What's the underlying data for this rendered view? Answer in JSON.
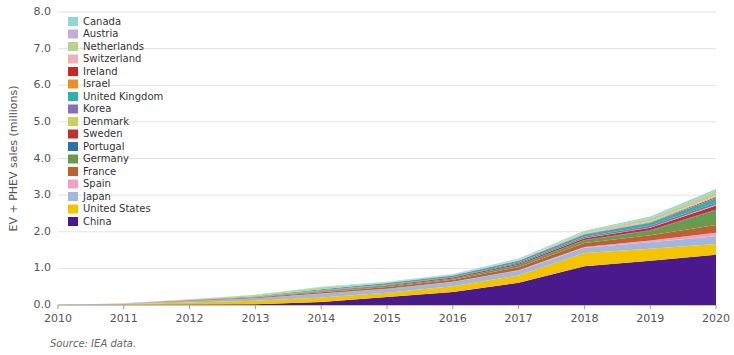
{
  "chart_data": {
    "type": "area",
    "stacked": true,
    "y_label": "EV + PHEV sales (millions)",
    "source": "Source: IEA data.",
    "x": [
      2010,
      2011,
      2012,
      2013,
      2014,
      2015,
      2016,
      2017,
      2018,
      2019,
      2020
    ],
    "xlim": [
      2010,
      2020
    ],
    "xticks": [
      2010,
      2011,
      2012,
      2013,
      2014,
      2015,
      2016,
      2017,
      2018,
      2019,
      2020
    ],
    "ylim": [
      0.0,
      8.0
    ],
    "yticks": [
      {
        "value": 0.0,
        "label": "0.0"
      },
      {
        "value": 1.0,
        "label": "1.0"
      },
      {
        "value": 2.0,
        "label": "2.0"
      },
      {
        "value": 3.0,
        "label": "3.0"
      },
      {
        "value": 4.0,
        "label": "4.0"
      },
      {
        "value": 5.0,
        "label": "5.0"
      },
      {
        "value": 6.0,
        "label": "6.0"
      },
      {
        "value": 7.0,
        "label": "7.0"
      },
      {
        "value": 8.0,
        "label": "8.0"
      }
    ],
    "grid": true,
    "legend": "upper left",
    "series": [
      {
        "name": "China",
        "color": "#4a1a8c",
        "values": [
          0.001,
          0.006,
          0.014,
          0.02,
          0.083,
          0.22,
          0.352,
          0.608,
          1.058,
          1.206,
          1.37
        ]
      },
      {
        "name": "United States",
        "color": "#f5c400",
        "values": [
          0.0,
          0.017,
          0.053,
          0.097,
          0.12,
          0.116,
          0.16,
          0.2,
          0.362,
          0.33,
          0.295
        ]
      },
      {
        "name": "Japan",
        "color": "#a0b8e0",
        "values": [
          0.001,
          0.014,
          0.044,
          0.064,
          0.107,
          0.105,
          0.118,
          0.13,
          0.14,
          0.18,
          0.215
        ]
      },
      {
        "name": "Spain",
        "color": "#f5a0c8",
        "values": [
          0.0,
          0.001,
          0.001,
          0.001,
          0.002,
          0.004,
          0.006,
          0.012,
          0.026,
          0.048,
          0.096
        ]
      },
      {
        "name": "France",
        "color": "#c06030",
        "values": [
          0.0,
          0.002,
          0.011,
          0.022,
          0.038,
          0.046,
          0.055,
          0.082,
          0.105,
          0.14,
          0.21
        ]
      },
      {
        "name": "Germany",
        "color": "#6a9a50",
        "values": [
          0.0,
          0.002,
          0.004,
          0.007,
          0.014,
          0.026,
          0.028,
          0.058,
          0.074,
          0.122,
          0.4
        ]
      },
      {
        "name": "Portugal",
        "color": "#3070a8",
        "values": [
          0.0,
          0.001,
          0.002,
          0.003,
          0.005,
          0.005,
          0.006,
          0.007,
          0.008,
          0.013,
          0.02
        ]
      },
      {
        "name": "Sweden",
        "color": "#c03030",
        "values": [
          0.0,
          0.001,
          0.003,
          0.006,
          0.015,
          0.018,
          0.023,
          0.028,
          0.05,
          0.068,
          0.11
        ]
      },
      {
        "name": "Denmark",
        "color": "#c8d060",
        "values": [
          0.0,
          0.001,
          0.001,
          0.003,
          0.007,
          0.005,
          0.002,
          0.003,
          0.004,
          0.01,
          0.02
        ]
      },
      {
        "name": "Korea",
        "color": "#8870b8",
        "values": [
          0.0,
          0.0,
          0.001,
          0.003,
          0.009,
          0.013,
          0.017,
          0.03,
          0.035,
          0.046,
          0.058
        ]
      },
      {
        "name": "United Kingdom",
        "color": "#30b0b0",
        "values": [
          0.0,
          0.001,
          0.004,
          0.011,
          0.027,
          0.044,
          0.04,
          0.052,
          0.065,
          0.082,
          0.118
        ]
      },
      {
        "name": "Israel",
        "color": "#e89020",
        "values": [
          0.0,
          0.002,
          0.002,
          0.001,
          0.001,
          0.001,
          0.002,
          0.002,
          0.005,
          0.007,
          0.012
        ]
      },
      {
        "name": "Ireland",
        "color": "#cc2820",
        "values": [
          0.0,
          0.0,
          0.001,
          0.001,
          0.001,
          0.001,
          0.001,
          0.002,
          0.004,
          0.008,
          0.023
        ]
      },
      {
        "name": "Switzerland",
        "color": "#f0b0b8",
        "values": [
          0.0,
          0.0,
          0.001,
          0.002,
          0.004,
          0.006,
          0.008,
          0.015,
          0.025,
          0.03,
          0.038
        ]
      },
      {
        "name": "Netherlands",
        "color": "#b8d488",
        "values": [
          0.0,
          0.001,
          0.009,
          0.032,
          0.048,
          0.01,
          0.011,
          0.011,
          0.026,
          0.072,
          0.106
        ]
      },
      {
        "name": "Austria",
        "color": "#c0b0d8",
        "values": [
          0.0,
          0.0,
          0.001,
          0.001,
          0.002,
          0.003,
          0.004,
          0.007,
          0.011,
          0.018,
          0.03
        ]
      },
      {
        "name": "Canada",
        "color": "#90d8d0",
        "values": [
          0.0,
          0.001,
          0.004,
          0.007,
          0.014,
          0.015,
          0.016,
          0.02,
          0.028,
          0.038,
          0.048
        ]
      }
    ]
  }
}
